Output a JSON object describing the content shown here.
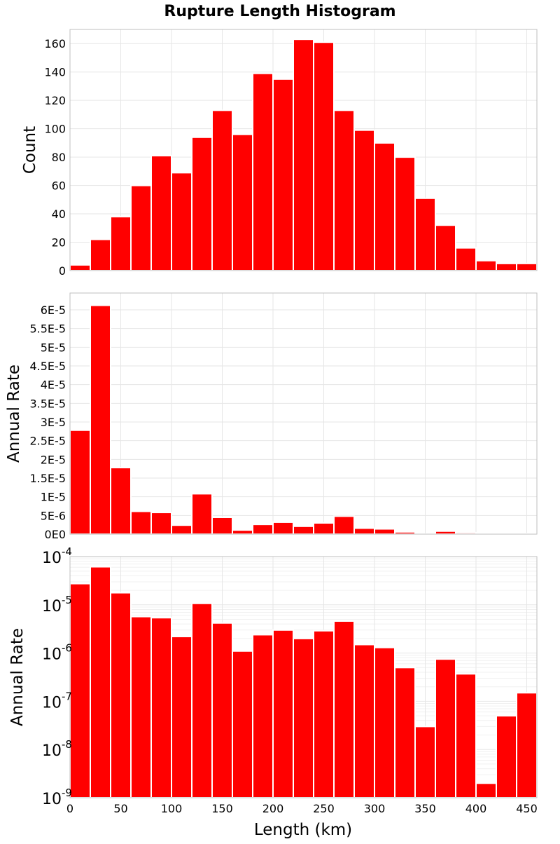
{
  "title": "Rupture Length Histogram",
  "xlabel": "Length (km)",
  "colors": {
    "bar": "#ff0000",
    "bar_edge": "#ffffff",
    "frame": "#bfbfbf",
    "grid": "#e6e6e6",
    "minor_grid": "#f0f0f0",
    "text": "#000000"
  },
  "chart_data": [
    {
      "type": "bar",
      "ylabel": "Count",
      "yscale": "linear",
      "ylim": [
        0,
        170
      ],
      "xlim": [
        0,
        460
      ],
      "grid": true,
      "bin_width": 20,
      "x": [
        10,
        30,
        50,
        70,
        90,
        110,
        130,
        150,
        170,
        190,
        210,
        230,
        250,
        270,
        290,
        310,
        330,
        350,
        370,
        390,
        410,
        430,
        450
      ],
      "values": [
        4,
        22,
        38,
        60,
        81,
        69,
        94,
        113,
        96,
        139,
        135,
        163,
        161,
        113,
        99,
        90,
        80,
        51,
        32,
        16,
        7,
        5,
        5
      ],
      "yticks": [
        0,
        20,
        40,
        60,
        80,
        100,
        120,
        140,
        160
      ],
      "ytick_labels": [
        "0",
        "20",
        "40",
        "60",
        "80",
        "100",
        "120",
        "140",
        "160"
      ]
    },
    {
      "type": "bar",
      "ylabel": "Annual Rate",
      "yscale": "linear",
      "ylim": [
        0,
        6.45e-05
      ],
      "xlim": [
        0,
        460
      ],
      "grid": true,
      "bin_width": 20,
      "x": [
        10,
        30,
        50,
        70,
        90,
        110,
        130,
        150,
        170,
        190,
        210,
        230,
        250,
        270,
        290,
        310,
        330,
        350,
        370,
        390,
        410,
        430,
        450
      ],
      "values": [
        2.78e-05,
        6.12e-05,
        1.78e-05,
        6.1e-06,
        5.8e-06,
        2.4e-06,
        1.08e-05,
        4.5e-06,
        1.1e-06,
        2.6e-06,
        3.2e-06,
        2.1e-06,
        3e-06,
        4.8e-06,
        1.6e-06,
        1.4e-06,
        6e-07,
        4e-08,
        8e-07,
        4e-07,
        2e-09,
        5e-08,
        1.5e-07
      ],
      "yticks": [
        0,
        5e-06,
        1e-05,
        1.5e-05,
        2e-05,
        2.5e-05,
        3e-05,
        3.5e-05,
        4e-05,
        4.5e-05,
        5e-05,
        5.5e-05,
        6e-05
      ],
      "ytick_labels": [
        "0E0",
        "5E-6",
        "1E-5",
        "1.5E-5",
        "2E-5",
        "2.5E-5",
        "3E-5",
        "3.5E-5",
        "4E-5",
        "4.5E-5",
        "5E-5",
        "5.5E-5",
        "6E-5"
      ]
    },
    {
      "type": "bar",
      "ylabel": "Annual Rate",
      "yscale": "log",
      "ylim": [
        1e-09,
        0.0001
      ],
      "xlim": [
        0,
        460
      ],
      "grid": true,
      "bin_width": 20,
      "x": [
        10,
        30,
        50,
        70,
        90,
        110,
        130,
        150,
        170,
        190,
        210,
        230,
        250,
        270,
        290,
        310,
        330,
        350,
        370,
        390,
        410,
        430,
        450
      ],
      "values": [
        2.75e-05,
        6.15e-05,
        1.78e-05,
        5.7e-06,
        5.4e-06,
        2.2e-06,
        1.07e-05,
        4.2e-06,
        1.1e-06,
        2.4e-06,
        3e-06,
        2e-06,
        2.9e-06,
        4.6e-06,
        1.5e-06,
        1.3e-06,
        5e-07,
        3e-08,
        7.5e-07,
        3.7e-07,
        2e-09,
        5e-08,
        1.5e-07
      ],
      "ytick_bases": [
        "10",
        "10",
        "10",
        "10",
        "10",
        "10"
      ],
      "ytick_exponents": [
        "-9",
        "-8",
        "-7",
        "-6",
        "-5",
        "-4"
      ],
      "yticks": [
        1e-09,
        1e-08,
        1e-07,
        1e-06,
        1e-05,
        0.0001
      ],
      "xticks": [
        0,
        50,
        100,
        150,
        200,
        250,
        300,
        350,
        400,
        450
      ],
      "xtick_labels": [
        "0",
        "50",
        "100",
        "150",
        "200",
        "250",
        "300",
        "350",
        "400",
        "450"
      ]
    }
  ]
}
